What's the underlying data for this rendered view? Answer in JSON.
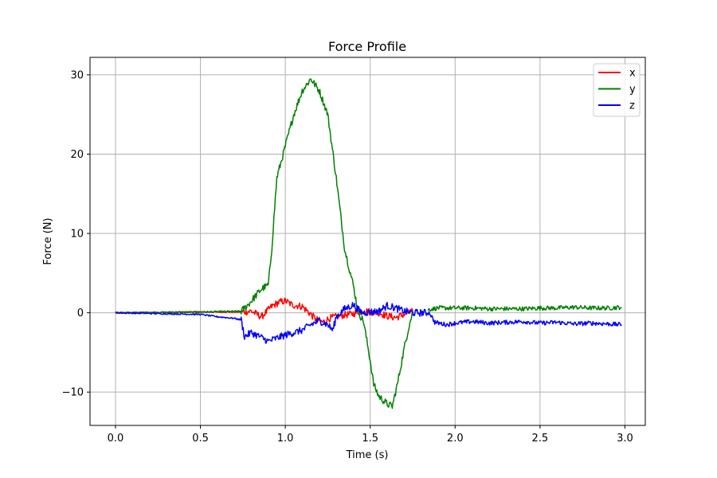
{
  "chart_data": {
    "type": "line",
    "title": "Force Profile",
    "xlabel": "Time (s)",
    "ylabel": "Force (N)",
    "xlim": [
      -0.15,
      3.12
    ],
    "ylim": [
      -14.2,
      32.2
    ],
    "xticks": [
      0.0,
      0.5,
      1.0,
      1.5,
      2.0,
      2.5,
      3.0
    ],
    "xtick_labels": [
      "0.0",
      "0.5",
      "1.0",
      "1.5",
      "2.0",
      "2.5",
      "3.0"
    ],
    "yticks": [
      -10,
      0,
      10,
      20,
      30
    ],
    "ytick_labels": [
      "−10",
      "0",
      "10",
      "20",
      "30"
    ],
    "grid": true,
    "legend_position": "top-right",
    "series": [
      {
        "name": "x",
        "color": "#ff0000",
        "segments": [
          {
            "x": [
              0.0,
              0.5,
              0.74,
              0.8,
              0.86,
              0.92,
              0.96,
              1.0,
              1.04,
              1.1,
              1.14,
              1.18,
              1.22,
              1.26,
              1.3,
              1.34,
              1.38,
              1.42,
              1.46,
              1.5,
              1.55,
              1.6,
              1.65,
              1.7,
              1.75
            ],
            "y": [
              0.0,
              0.1,
              0.1,
              0.2,
              -0.5,
              0.8,
              1.3,
              1.5,
              1.0,
              0.8,
              0.0,
              -0.8,
              -1.2,
              -0.7,
              -0.5,
              -0.3,
              -0.2,
              0.0,
              0.3,
              0.1,
              0.0,
              -0.4,
              -0.6,
              -0.2,
              0.2
            ]
          }
        ]
      },
      {
        "name": "y",
        "color": "#008000",
        "segments": [
          {
            "x": [
              0.0,
              0.5,
              0.74,
              0.78,
              0.82,
              0.86,
              0.9,
              0.92,
              0.95,
              1.0,
              1.05,
              1.1,
              1.15,
              1.2,
              1.25,
              1.3,
              1.35,
              1.4,
              1.43,
              1.46,
              1.5,
              1.52,
              1.55,
              1.6,
              1.63,
              1.66,
              1.7,
              1.73,
              1.75
            ],
            "y": [
              0.0,
              0.1,
              0.2,
              1.0,
              2.0,
              3.0,
              3.5,
              8.0,
              17.0,
              21.0,
              25.0,
              28.0,
              29.5,
              28.0,
              25.0,
              17.0,
              8.0,
              3.5,
              0.0,
              -1.0,
              -6.0,
              -9.0,
              -10.5,
              -11.5,
              -11.8,
              -9.0,
              -4.5,
              -1.5,
              0.0
            ]
          },
          {
            "x": [
              1.84,
              1.9,
              2.0,
              2.1,
              2.2,
              2.3,
              2.4,
              2.5,
              2.6,
              2.7,
              2.8,
              2.9,
              2.98
            ],
            "y": [
              0.4,
              0.6,
              0.6,
              0.6,
              0.5,
              0.5,
              0.5,
              0.6,
              0.6,
              0.7,
              0.6,
              0.6,
              0.7
            ]
          }
        ]
      },
      {
        "name": "z",
        "color": "#0000ff",
        "segments": [
          {
            "x": [
              0.0,
              0.5,
              0.6,
              0.7,
              0.74,
              0.76,
              0.8,
              0.85,
              0.9,
              0.95,
              1.0,
              1.05,
              1.1,
              1.15,
              1.2,
              1.25,
              1.28,
              1.3,
              1.35,
              1.4,
              1.45,
              1.5,
              1.55,
              1.6,
              1.65,
              1.7,
              1.75,
              1.8,
              1.85,
              1.88,
              1.95,
              2.0,
              2.1,
              2.2,
              2.3,
              2.4,
              2.5,
              2.6,
              2.7,
              2.8,
              2.9,
              2.98
            ],
            "y": [
              0.0,
              -0.2,
              -0.5,
              -0.7,
              -0.9,
              -3.0,
              -2.5,
              -3.0,
              -3.6,
              -3.2,
              -2.8,
              -2.5,
              -2.2,
              -1.5,
              -1.0,
              -1.5,
              -2.2,
              -0.5,
              0.5,
              1.0,
              0.0,
              0.1,
              0.2,
              0.9,
              0.6,
              0.2,
              0.0,
              0.0,
              0.0,
              -1.2,
              -1.5,
              -1.3,
              -1.1,
              -1.3,
              -1.2,
              -1.1,
              -1.3,
              -1.2,
              -1.4,
              -1.3,
              -1.4,
              -1.5
            ]
          }
        ]
      }
    ]
  }
}
